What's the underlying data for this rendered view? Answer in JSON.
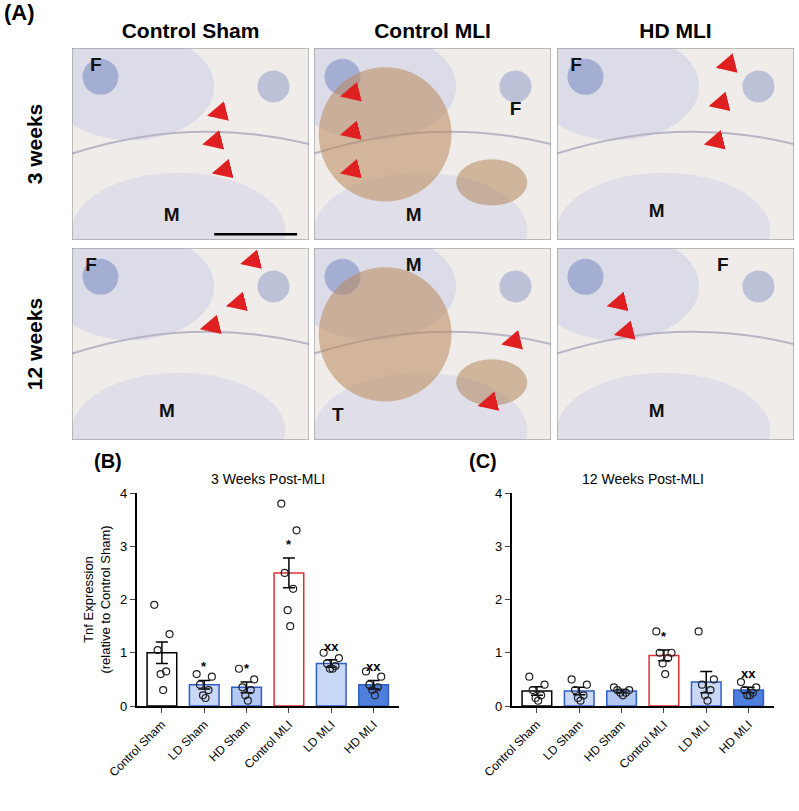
{
  "panel_a": {
    "label": "(A)",
    "columns": [
      "Control Sham",
      "Control MLI",
      "HD MLI"
    ],
    "rows": [
      "3 weeks",
      "12 weeks"
    ],
    "cells": [
      [
        [
          "F",
          "M"
        ],
        [
          "F",
          "M"
        ],
        [
          "F",
          "M"
        ]
      ],
      [
        [
          "F",
          "M"
        ],
        [
          "M",
          "T"
        ],
        [
          "F",
          "M"
        ]
      ]
    ]
  },
  "chart_data": [
    {
      "type": "bar",
      "panel": "(B)",
      "title": "3 Weeks Post-MLI",
      "y_label": [
        "Tnf Expression",
        "(relative to Control Sham)"
      ],
      "categories": [
        "Control Sham",
        "LD Sham",
        "HD Sham",
        "Control MLI",
        "LD MLI",
        "HD MLI"
      ],
      "values": [
        1.0,
        0.4,
        0.35,
        2.5,
        0.8,
        0.4
      ],
      "errors": [
        0.2,
        0.08,
        0.1,
        0.28,
        0.07,
        0.08
      ],
      "points": [
        [
          1.9,
          1.35,
          1.05,
          0.65,
          0.6,
          0.3
        ],
        [
          0.6,
          0.55,
          0.4,
          0.3,
          0.2,
          0.15
        ],
        [
          0.7,
          0.5,
          0.35,
          0.3,
          0.2,
          0.1
        ],
        [
          3.8,
          3.3,
          2.5,
          2.2,
          1.8,
          1.5
        ],
        [
          1.0,
          0.9,
          0.8,
          0.75,
          0.7,
          0.7
        ],
        [
          0.65,
          0.55,
          0.4,
          0.35,
          0.3,
          0.2
        ]
      ],
      "significance": [
        null,
        "*",
        "*",
        "*",
        "xx",
        "xx"
      ],
      "colors": [
        "#ffffff",
        "#c9d8f7",
        "#b3c8f2",
        "#ffffff",
        "#c9d8f7",
        "#4f7fdc"
      ],
      "ylim": [
        0,
        4
      ],
      "yticks": [
        0,
        1,
        2,
        3,
        4
      ],
      "grid": false
    },
    {
      "type": "bar",
      "panel": "(C)",
      "title": "12 Weeks Post-MLI",
      "categories": [
        "Control Sham",
        "LD Sham",
        "HD Sham",
        "Control MLI",
        "LD MLI",
        "HD MLI"
      ],
      "values": [
        0.28,
        0.28,
        0.28,
        0.95,
        0.45,
        0.3
      ],
      "errors": [
        0.08,
        0.07,
        0.03,
        0.1,
        0.2,
        0.05
      ],
      "points": [
        [
          0.55,
          0.4,
          0.3,
          0.2,
          0.15,
          0.1
        ],
        [
          0.5,
          0.4,
          0.3,
          0.2,
          0.15,
          0.1
        ],
        [
          0.35,
          0.3,
          0.3,
          0.25,
          0.25,
          0.2
        ],
        [
          1.4,
          1.0,
          1.0,
          0.9,
          0.8,
          0.6
        ],
        [
          1.4,
          0.5,
          0.4,
          0.3,
          0.2,
          0.1
        ],
        [
          0.45,
          0.35,
          0.3,
          0.25,
          0.2,
          0.2
        ]
      ],
      "significance": [
        null,
        null,
        null,
        "*",
        null,
        "xx"
      ],
      "colors": [
        "#ffffff",
        "#c9d8f7",
        "#b3c8f2",
        "#ffffff",
        "#c9d8f7",
        "#4f7fdc"
      ],
      "ylim": [
        0,
        4
      ],
      "yticks": [
        0,
        1,
        2,
        3,
        4
      ],
      "grid": false
    }
  ]
}
